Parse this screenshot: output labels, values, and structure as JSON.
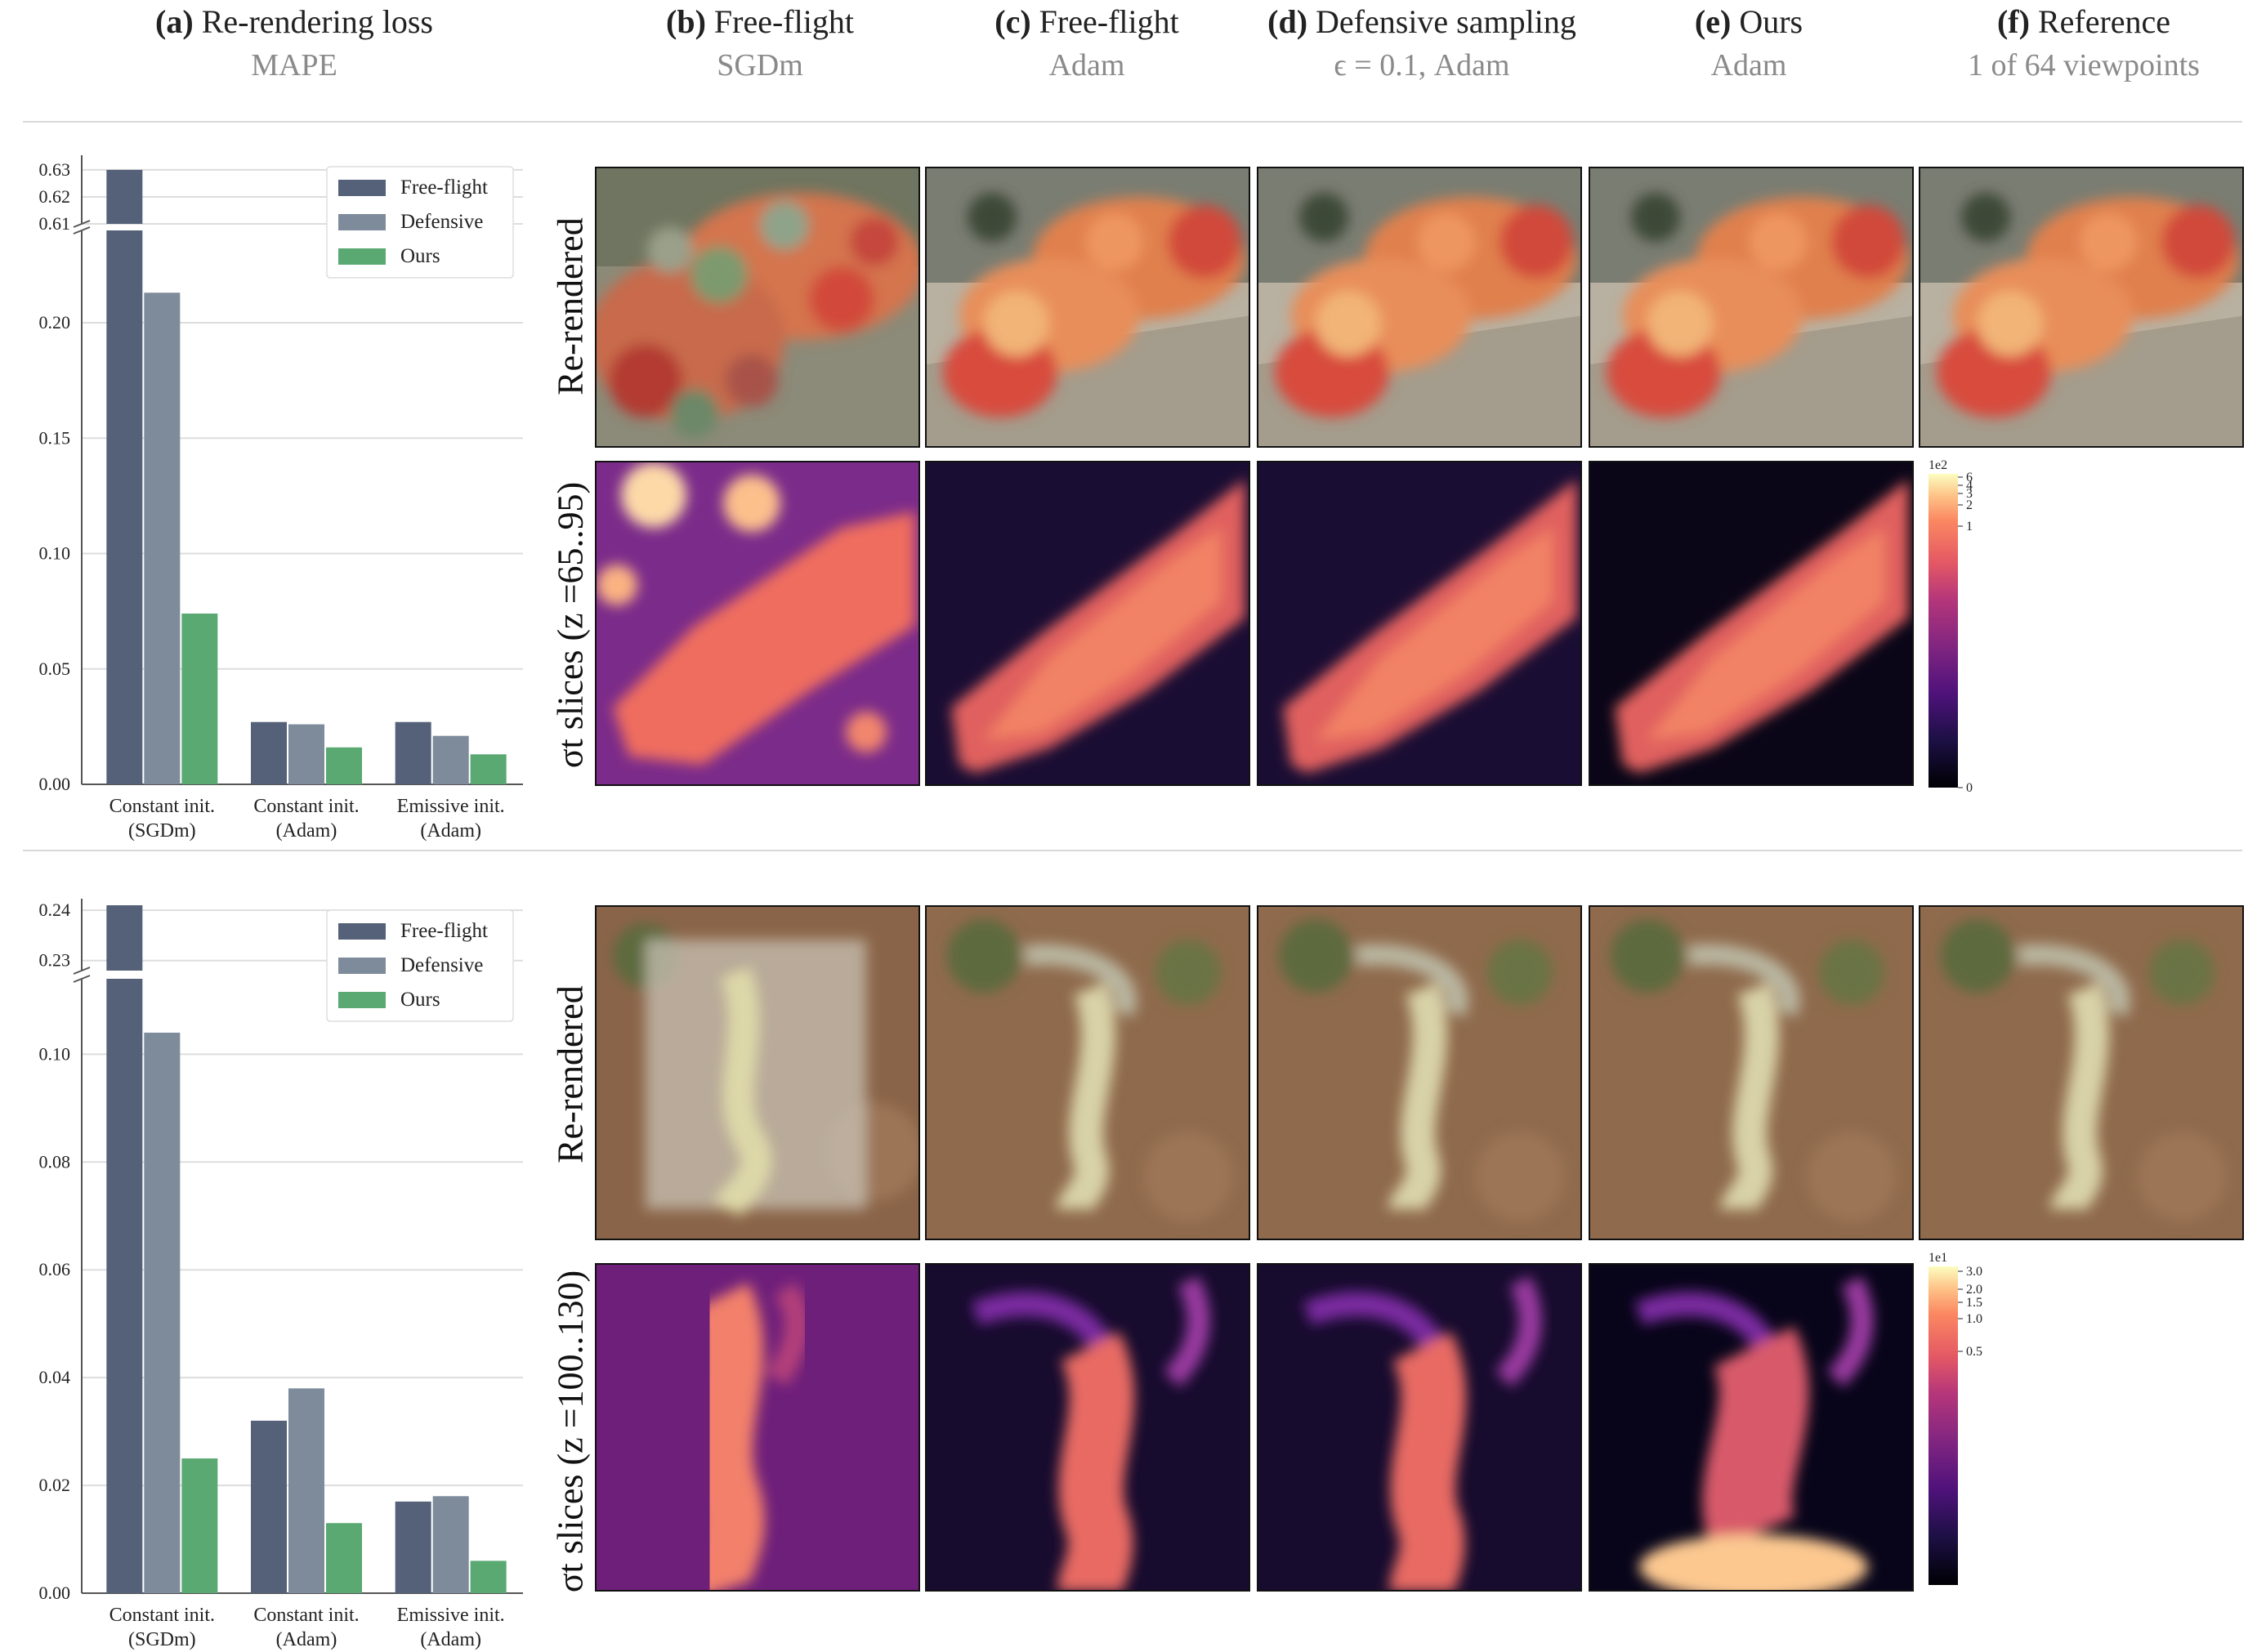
{
  "headers": [
    {
      "letter": "(a)",
      "title": "Re-rendering loss",
      "subtitle": "MAPE"
    },
    {
      "letter": "(b)",
      "title": "Free-flight",
      "subtitle": "SGDm"
    },
    {
      "letter": "(c)",
      "title": "Free-flight",
      "subtitle": "Adam"
    },
    {
      "letter": "(d)",
      "title": "Defensive sampling",
      "subtitle": "ϵ = 0.1, Adam"
    },
    {
      "letter": "(e)",
      "title": "Ours",
      "subtitle": "Adam"
    },
    {
      "letter": "(f)",
      "title": "Reference",
      "subtitle": "1 of 64 viewpoints"
    }
  ],
  "rows": [
    {
      "label_rendered": "Re-rendered",
      "label_slice": "σt slices (z =65..95)",
      "colorbar": {
        "top": "1e2",
        "ticks": [
          "6",
          "4",
          "3",
          "2",
          "1",
          "0"
        ]
      }
    },
    {
      "label_rendered": "Re-rendered",
      "label_slice": "σt slices (z =100..130)",
      "colorbar": {
        "top": "1e1",
        "ticks": [
          "3.0",
          "2.0",
          "1.5",
          "1.0",
          "0.5"
        ]
      }
    }
  ],
  "colors": {
    "free_flight": "#556179",
    "defensive": "#7e8b9b",
    "ours": "#5aa872",
    "grid": "#dddddd"
  },
  "chart_data": [
    {
      "type": "bar",
      "categories": [
        "Constant init.\n(SGDm)",
        "Constant init.\n(Adam)",
        "Emissive init.\n(Adam)"
      ],
      "series": [
        {
          "name": "Free-flight",
          "values": [
            0.63,
            0.027,
            0.027
          ]
        },
        {
          "name": "Defensive",
          "values": [
            0.213,
            0.026,
            0.021
          ]
        },
        {
          "name": "Ours",
          "values": [
            0.074,
            0.016,
            0.013
          ]
        }
      ],
      "yticks_lower": [
        "0.00",
        "0.05",
        "0.10",
        "0.15",
        "0.20"
      ],
      "yticks_upper": [
        "0.61",
        "0.62",
        "0.63"
      ],
      "ylim_lower": [
        0,
        0.24
      ],
      "ylim_upper": [
        0.61,
        0.633
      ],
      "broken_axis": true,
      "legend": "top-right",
      "grid": true
    },
    {
      "type": "bar",
      "categories": [
        "Constant init.\n(SGDm)",
        "Constant init.\n(Adam)",
        "Emissive init.\n(Adam)"
      ],
      "series": [
        {
          "name": "Free-flight",
          "values": [
            0.241,
            0.032,
            0.017
          ]
        },
        {
          "name": "Defensive",
          "values": [
            0.104,
            0.038,
            0.018
          ]
        },
        {
          "name": "Ours",
          "values": [
            0.025,
            0.013,
            0.006
          ]
        }
      ],
      "yticks_lower": [
        "0.00",
        "0.02",
        "0.04",
        "0.06",
        "0.08",
        "0.10"
      ],
      "yticks_upper": [
        "0.23",
        "0.24"
      ],
      "ylim_lower": [
        0,
        0.114
      ],
      "ylim_upper": [
        0.228,
        0.241
      ],
      "broken_axis": true,
      "legend": "top-right",
      "grid": true
    }
  ]
}
